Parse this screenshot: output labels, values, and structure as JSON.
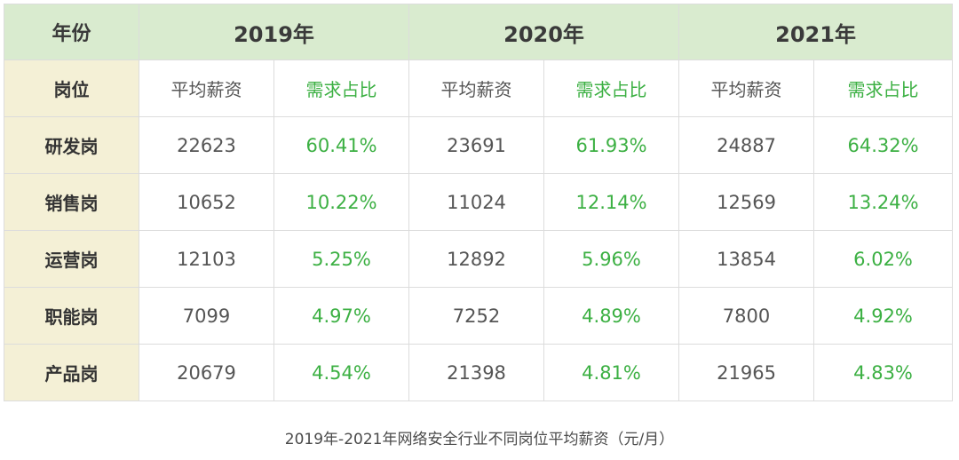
{
  "table": {
    "corner_label": "年份",
    "years": [
      "2019年",
      "2020年",
      "2021年"
    ],
    "sub_row_label": "岗位",
    "sub_headers": {
      "salary": "平均薪资",
      "ratio": "需求占比"
    },
    "rows": [
      {
        "role": "研发岗",
        "cells": [
          "22623",
          "60.41%",
          "23691",
          "61.93%",
          "24887",
          "64.32%"
        ]
      },
      {
        "role": "销售岗",
        "cells": [
          "10652",
          "10.22%",
          "11024",
          "12.14%",
          "12569",
          "13.24%"
        ]
      },
      {
        "role": "运营岗",
        "cells": [
          "12103",
          "5.25%",
          "12892",
          "5.96%",
          "13854",
          "6.02%"
        ]
      },
      {
        "role": "职能岗",
        "cells": [
          "7099",
          "4.97%",
          "7252",
          "4.89%",
          "7800",
          "4.92%"
        ]
      },
      {
        "role": "产品岗",
        "cells": [
          "20679",
          "4.54%",
          "21398",
          "4.81%",
          "21965",
          "4.83%"
        ]
      }
    ]
  },
  "caption": "2019年-2021年网络安全行业不同岗位平均薪资（元/月）",
  "colors": {
    "header_bg": "#d9ebcf",
    "row_header_bg": "#f4f0d6",
    "ratio_text": "#3cb043",
    "border": "#dcdcdc"
  }
}
